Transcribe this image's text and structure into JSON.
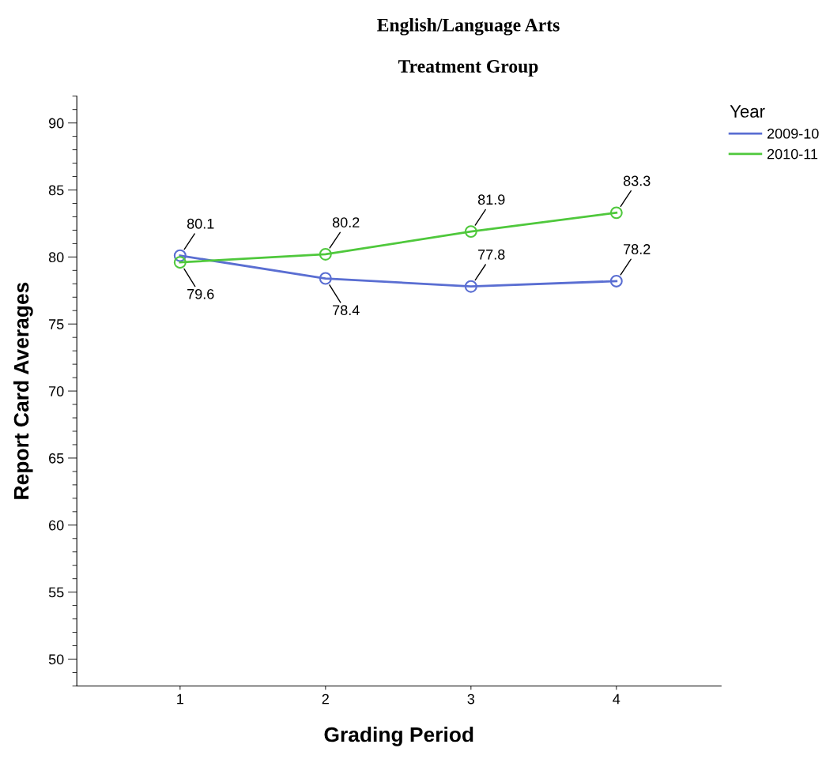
{
  "chart_data": {
    "type": "line",
    "title": "English/Language Arts",
    "subtitle": "Treatment Group",
    "xlabel": "Grading Period",
    "ylabel": "Report Card Averages",
    "legend_title": "Year",
    "x": [
      1,
      2,
      3,
      4
    ],
    "xlim": [
      0.29,
      4.72
    ],
    "xticks": [
      1,
      2,
      3,
      4
    ],
    "ylim": [
      48,
      92
    ],
    "yticks": [
      50,
      55,
      60,
      65,
      70,
      75,
      80,
      85,
      90
    ],
    "series": [
      {
        "name": "2009-10",
        "color": "#5a6ed2",
        "values": [
          80.1,
          78.4,
          77.8,
          78.2
        ]
      },
      {
        "name": "2010-11",
        "color": "#4fc83c",
        "values": [
          79.6,
          80.2,
          81.9,
          83.3
        ]
      }
    ],
    "marker": "circle",
    "data_labels": true,
    "legend": "top right",
    "grid": false
  }
}
